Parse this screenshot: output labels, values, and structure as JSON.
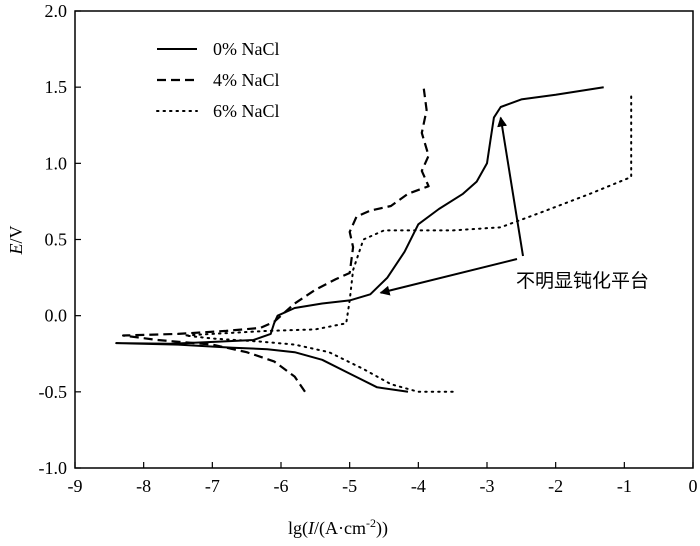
{
  "chart_data": {
    "type": "line",
    "title": "",
    "xlabel": {
      "pre": "lg(",
      "italic": "I",
      "post": "/(A·cm",
      "sup": "-2",
      "end": "))"
    },
    "ylabel": {
      "italic": "E",
      "post": "/V"
    },
    "xlim": [
      -9,
      0
    ],
    "ylim": [
      -1.0,
      2.0
    ],
    "x_ticks": [
      -9,
      -8,
      -7,
      -6,
      -5,
      -4,
      -3,
      -2,
      -1,
      0
    ],
    "x_tick_labels": [
      "-9",
      "-8",
      "-7",
      "-6",
      "-5",
      "-4",
      "-3",
      "-2",
      "-1",
      "0"
    ],
    "y_ticks": [
      -1.0,
      -0.5,
      0.0,
      0.5,
      1.0,
      1.5,
      2.0
    ],
    "y_tick_labels": [
      "-1.0",
      "-0.5",
      "0.0",
      "0.5",
      "1.0",
      "1.5",
      "2.0"
    ],
    "legend_position": "top-left",
    "series": [
      {
        "name": "0% NaCl",
        "style": "solid",
        "points": [
          [
            -4.15,
            -0.5
          ],
          [
            -4.6,
            -0.47
          ],
          [
            -5.0,
            -0.38
          ],
          [
            -5.4,
            -0.29
          ],
          [
            -5.8,
            -0.24
          ],
          [
            -6.2,
            -0.22
          ],
          [
            -6.7,
            -0.21
          ],
          [
            -7.5,
            -0.19
          ],
          [
            -8.4,
            -0.18
          ],
          [
            -7.6,
            -0.185
          ],
          [
            -6.9,
            -0.17
          ],
          [
            -6.4,
            -0.16
          ],
          [
            -6.15,
            -0.12
          ],
          [
            -6.1,
            -0.05
          ],
          [
            -6.05,
            0.0
          ],
          [
            -5.8,
            0.05
          ],
          [
            -5.4,
            0.08
          ],
          [
            -5.0,
            0.1
          ],
          [
            -4.7,
            0.14
          ],
          [
            -4.45,
            0.25
          ],
          [
            -4.2,
            0.42
          ],
          [
            -4.0,
            0.6
          ],
          [
            -3.7,
            0.7
          ],
          [
            -3.35,
            0.8
          ],
          [
            -3.15,
            0.88
          ],
          [
            -3.0,
            1.0
          ],
          [
            -2.95,
            1.15
          ],
          [
            -2.9,
            1.3
          ],
          [
            -2.8,
            1.37
          ],
          [
            -2.5,
            1.42
          ],
          [
            -2.0,
            1.45
          ],
          [
            -1.3,
            1.5
          ]
        ]
      },
      {
        "name": "4% NaCl",
        "style": "dashed",
        "points": [
          [
            -5.65,
            -0.5
          ],
          [
            -5.8,
            -0.4
          ],
          [
            -6.1,
            -0.3
          ],
          [
            -6.5,
            -0.24
          ],
          [
            -7.0,
            -0.19
          ],
          [
            -7.8,
            -0.16
          ],
          [
            -8.3,
            -0.13
          ],
          [
            -7.5,
            -0.12
          ],
          [
            -6.8,
            -0.1
          ],
          [
            -6.3,
            -0.08
          ],
          [
            -6.1,
            -0.04
          ],
          [
            -6.0,
            0.0
          ],
          [
            -5.8,
            0.08
          ],
          [
            -5.5,
            0.17
          ],
          [
            -5.2,
            0.24
          ],
          [
            -5.0,
            0.28
          ],
          [
            -4.95,
            0.45
          ],
          [
            -5.0,
            0.55
          ],
          [
            -4.9,
            0.65
          ],
          [
            -4.7,
            0.69
          ],
          [
            -4.4,
            0.72
          ],
          [
            -4.15,
            0.8
          ],
          [
            -3.85,
            0.85
          ],
          [
            -3.95,
            0.95
          ],
          [
            -3.85,
            1.05
          ],
          [
            -3.95,
            1.2
          ],
          [
            -3.88,
            1.35
          ],
          [
            -3.92,
            1.49
          ]
        ]
      },
      {
        "name": "6% NaCl",
        "style": "dotted",
        "points": [
          [
            -3.5,
            -0.5
          ],
          [
            -4.0,
            -0.5
          ],
          [
            -4.4,
            -0.45
          ],
          [
            -4.8,
            -0.35
          ],
          [
            -5.3,
            -0.24
          ],
          [
            -5.8,
            -0.19
          ],
          [
            -6.3,
            -0.17
          ],
          [
            -7.0,
            -0.15
          ],
          [
            -7.4,
            -0.13
          ],
          [
            -7.0,
            -0.12
          ],
          [
            -6.6,
            -0.11
          ],
          [
            -6.2,
            -0.1
          ],
          [
            -5.5,
            -0.09
          ],
          [
            -5.05,
            -0.05
          ],
          [
            -5.0,
            0.1
          ],
          [
            -4.95,
            0.3
          ],
          [
            -4.8,
            0.5
          ],
          [
            -4.5,
            0.56
          ],
          [
            -3.5,
            0.56
          ],
          [
            -2.8,
            0.58
          ],
          [
            -2.2,
            0.68
          ],
          [
            -1.5,
            0.8
          ],
          [
            -0.9,
            0.91
          ],
          [
            -0.9,
            1.46
          ]
        ]
      }
    ],
    "annotations": [
      {
        "text": "不明显钝化平台",
        "arrow_targets": [
          [
            -4.55,
            0.15
          ],
          [
            -2.8,
            1.3
          ]
        ]
      }
    ]
  }
}
